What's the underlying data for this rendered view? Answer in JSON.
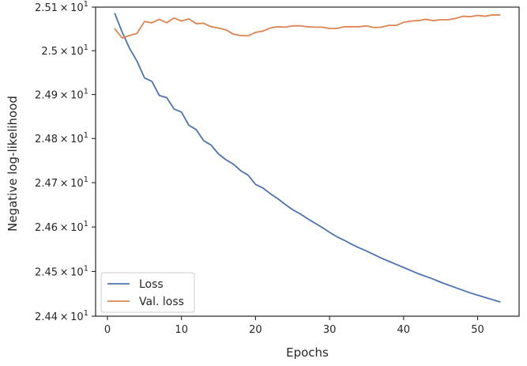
{
  "chart_data": {
    "type": "line",
    "xlabel": "Epochs",
    "ylabel": "Negative log-likelihood",
    "xlim": [
      -1.6,
      55.6
    ],
    "ylim": [
      24.4,
      25.1
    ],
    "y_scale": "log",
    "grid": false,
    "legend_position": "lower-left",
    "x_ticks": [
      0,
      10,
      20,
      30,
      40,
      50
    ],
    "x_tick_labels": [
      "0",
      "10",
      "20",
      "30",
      "40",
      "50"
    ],
    "y_ticks": [
      24.4,
      24.5,
      24.6,
      24.7,
      24.8,
      24.9,
      25.0,
      25.1
    ],
    "y_tick_labels": [
      {
        "mantissa": "2.44",
        "exp": "1"
      },
      {
        "mantissa": "2.45",
        "exp": "1"
      },
      {
        "mantissa": "2.46",
        "exp": "1"
      },
      {
        "mantissa": "2.47",
        "exp": "1"
      },
      {
        "mantissa": "2.48",
        "exp": "1"
      },
      {
        "mantissa": "2.49",
        "exp": "1"
      },
      {
        "mantissa": "2.5",
        "exp": "1"
      },
      {
        "mantissa": "2.51",
        "exp": "1"
      }
    ],
    "tick_times_symbol": "×",
    "tick_base": "10",
    "x": [
      1,
      2,
      3,
      4,
      5,
      6,
      7,
      8,
      9,
      10,
      11,
      12,
      13,
      14,
      15,
      16,
      17,
      18,
      19,
      20,
      21,
      22,
      23,
      24,
      25,
      26,
      27,
      28,
      29,
      30,
      31,
      32,
      33,
      34,
      35,
      36,
      37,
      38,
      39,
      40,
      41,
      42,
      43,
      44,
      45,
      46,
      47,
      48,
      49,
      50,
      51,
      52,
      53
    ],
    "series": [
      {
        "name": "Loss",
        "color": "#4c72b0",
        "values": [
          25.085,
          25.042,
          25.005,
          24.976,
          24.938,
          24.93,
          24.898,
          24.893,
          24.867,
          24.86,
          24.83,
          24.82,
          24.795,
          24.785,
          24.765,
          24.752,
          24.742,
          24.727,
          24.717,
          24.696,
          24.688,
          24.675,
          24.664,
          24.651,
          24.639,
          24.63,
          24.619,
          24.609,
          24.599,
          24.588,
          24.578,
          24.57,
          24.561,
          24.553,
          24.546,
          24.538,
          24.53,
          24.523,
          24.516,
          24.509,
          24.502,
          24.495,
          24.489,
          24.483,
          24.476,
          24.47,
          24.464,
          24.458,
          24.452,
          24.447,
          24.442,
          24.437,
          24.432
        ]
      },
      {
        "name": "Val. loss",
        "color": "#dd8452",
        "values": [
          25.05,
          25.029,
          25.035,
          25.04,
          25.067,
          25.064,
          25.072,
          25.064,
          25.075,
          25.068,
          25.073,
          25.062,
          25.063,
          25.055,
          25.052,
          25.048,
          25.038,
          25.035,
          25.034,
          25.042,
          25.045,
          25.052,
          25.055,
          25.054,
          25.057,
          25.057,
          25.055,
          25.054,
          25.054,
          25.051,
          25.051,
          25.055,
          25.055,
          25.055,
          25.057,
          25.053,
          25.054,
          25.058,
          25.058,
          25.065,
          25.068,
          25.069,
          25.072,
          25.069,
          25.071,
          25.071,
          25.074,
          25.079,
          25.078,
          25.081,
          25.079,
          25.082,
          25.082
        ]
      }
    ]
  }
}
